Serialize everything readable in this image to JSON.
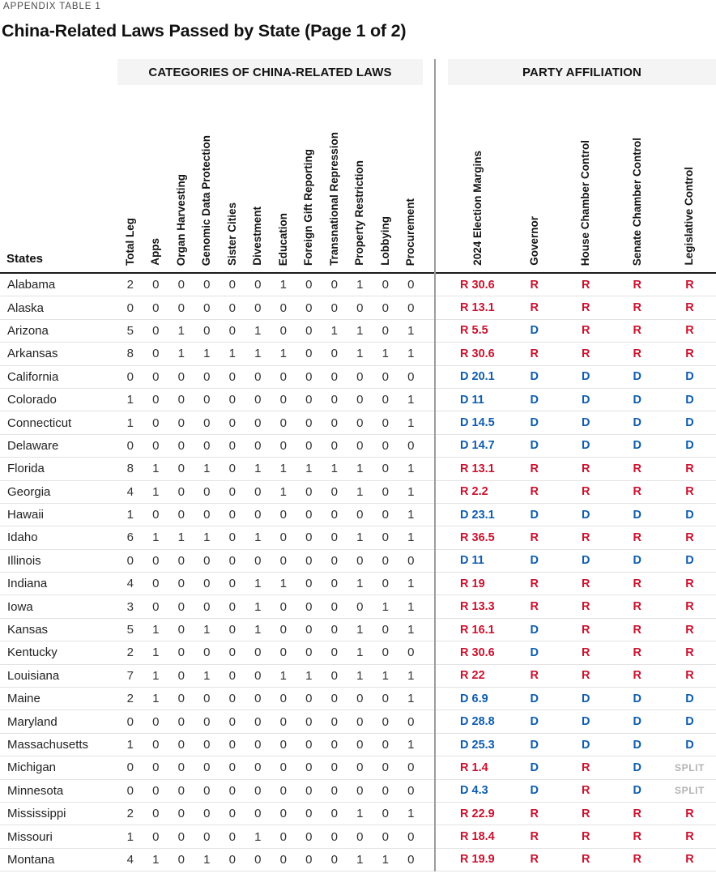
{
  "meta": {
    "appendix_label": "APPENDIX TABLE 1",
    "title": "China-Related Laws Passed by State (Page 1 of 2)"
  },
  "table": {
    "group_headers": {
      "categories": "CATEGORIES OF CHINA-RELATED LAWS",
      "party": "PARTY AFFILIATION"
    },
    "states_column_label": "States",
    "category_columns": [
      "Total Leg",
      "Apps",
      "Organ Harvesting",
      "Genomic Data Protection",
      "Sister Cities",
      "Divestment",
      "Education",
      "Foreign Gift Reporting",
      "Transnational Repression",
      "Property Restriction",
      "Lobbying",
      "Procurement"
    ],
    "party_columns": [
      "2024 Election Margins",
      "Governor",
      "House Chamber Control",
      "Senate Chamber Control",
      "Legislative Control"
    ],
    "colors": {
      "republican": "#c9122f",
      "democrat": "#0e5dad",
      "split": "#b3b3b3"
    },
    "rows": [
      {
        "state": "Alabama",
        "counts": [
          2,
          0,
          0,
          0,
          0,
          0,
          1,
          0,
          0,
          1,
          0,
          0
        ],
        "margin": "R 30.6",
        "governor": "R",
        "house": "R",
        "senate": "R",
        "legislative": "R"
      },
      {
        "state": "Alaska",
        "counts": [
          0,
          0,
          0,
          0,
          0,
          0,
          0,
          0,
          0,
          0,
          0,
          0
        ],
        "margin": "R 13.1",
        "governor": "R",
        "house": "R",
        "senate": "R",
        "legislative": "R"
      },
      {
        "state": "Arizona",
        "counts": [
          5,
          0,
          1,
          0,
          0,
          1,
          0,
          0,
          1,
          1,
          0,
          1
        ],
        "margin": "R 5.5",
        "governor": "D",
        "house": "R",
        "senate": "R",
        "legislative": "R"
      },
      {
        "state": "Arkansas",
        "counts": [
          8,
          0,
          1,
          1,
          1,
          1,
          1,
          0,
          0,
          1,
          1,
          1
        ],
        "margin": "R 30.6",
        "governor": "R",
        "house": "R",
        "senate": "R",
        "legislative": "R"
      },
      {
        "state": "California",
        "counts": [
          0,
          0,
          0,
          0,
          0,
          0,
          0,
          0,
          0,
          0,
          0,
          0
        ],
        "margin": "D 20.1",
        "governor": "D",
        "house": "D",
        "senate": "D",
        "legislative": "D"
      },
      {
        "state": "Colorado",
        "counts": [
          1,
          0,
          0,
          0,
          0,
          0,
          0,
          0,
          0,
          0,
          0,
          1
        ],
        "margin": "D 11",
        "governor": "D",
        "house": "D",
        "senate": "D",
        "legislative": "D"
      },
      {
        "state": "Connecticut",
        "counts": [
          1,
          0,
          0,
          0,
          0,
          0,
          0,
          0,
          0,
          0,
          0,
          1
        ],
        "margin": "D 14.5",
        "governor": "D",
        "house": "D",
        "senate": "D",
        "legislative": "D"
      },
      {
        "state": "Delaware",
        "counts": [
          0,
          0,
          0,
          0,
          0,
          0,
          0,
          0,
          0,
          0,
          0,
          0
        ],
        "margin": "D 14.7",
        "governor": "D",
        "house": "D",
        "senate": "D",
        "legislative": "D"
      },
      {
        "state": "Florida",
        "counts": [
          8,
          1,
          0,
          1,
          0,
          1,
          1,
          1,
          1,
          1,
          0,
          1
        ],
        "margin": "R 13.1",
        "governor": "R",
        "house": "R",
        "senate": "R",
        "legislative": "R"
      },
      {
        "state": "Georgia",
        "counts": [
          4,
          1,
          0,
          0,
          0,
          0,
          1,
          0,
          0,
          1,
          0,
          1
        ],
        "margin": "R 2.2",
        "governor": "R",
        "house": "R",
        "senate": "R",
        "legislative": "R"
      },
      {
        "state": "Hawaii",
        "counts": [
          1,
          0,
          0,
          0,
          0,
          0,
          0,
          0,
          0,
          0,
          0,
          1
        ],
        "margin": "D 23.1",
        "governor": "D",
        "house": "D",
        "senate": "D",
        "legislative": "D"
      },
      {
        "state": "Idaho",
        "counts": [
          6,
          1,
          1,
          1,
          0,
          1,
          0,
          0,
          0,
          1,
          0,
          1
        ],
        "margin": "R 36.5",
        "governor": "R",
        "house": "R",
        "senate": "R",
        "legislative": "R"
      },
      {
        "state": "Illinois",
        "counts": [
          0,
          0,
          0,
          0,
          0,
          0,
          0,
          0,
          0,
          0,
          0,
          0
        ],
        "margin": "D 11",
        "governor": "D",
        "house": "D",
        "senate": "D",
        "legislative": "D"
      },
      {
        "state": "Indiana",
        "counts": [
          4,
          0,
          0,
          0,
          0,
          1,
          1,
          0,
          0,
          1,
          0,
          1
        ],
        "margin": "R 19",
        "governor": "R",
        "house": "R",
        "senate": "R",
        "legislative": "R"
      },
      {
        "state": "Iowa",
        "counts": [
          3,
          0,
          0,
          0,
          0,
          1,
          0,
          0,
          0,
          0,
          1,
          1
        ],
        "margin": "R 13.3",
        "governor": "R",
        "house": "R",
        "senate": "R",
        "legislative": "R"
      },
      {
        "state": "Kansas",
        "counts": [
          5,
          1,
          0,
          1,
          0,
          1,
          0,
          0,
          0,
          1,
          0,
          1
        ],
        "margin": "R 16.1",
        "governor": "D",
        "house": "R",
        "senate": "R",
        "legislative": "R"
      },
      {
        "state": "Kentucky",
        "counts": [
          2,
          1,
          0,
          0,
          0,
          0,
          0,
          0,
          0,
          1,
          0,
          0
        ],
        "margin": "R 30.6",
        "governor": "D",
        "house": "R",
        "senate": "R",
        "legislative": "R"
      },
      {
        "state": "Louisiana",
        "counts": [
          7,
          1,
          0,
          1,
          0,
          0,
          1,
          1,
          0,
          1,
          1,
          1
        ],
        "margin": "R 22",
        "governor": "R",
        "house": "R",
        "senate": "R",
        "legislative": "R"
      },
      {
        "state": "Maine",
        "counts": [
          2,
          1,
          0,
          0,
          0,
          0,
          0,
          0,
          0,
          0,
          0,
          1
        ],
        "margin": "D 6.9",
        "governor": "D",
        "house": "D",
        "senate": "D",
        "legislative": "D"
      },
      {
        "state": "Maryland",
        "counts": [
          0,
          0,
          0,
          0,
          0,
          0,
          0,
          0,
          0,
          0,
          0,
          0
        ],
        "margin": "D 28.8",
        "governor": "D",
        "house": "D",
        "senate": "D",
        "legislative": "D"
      },
      {
        "state": "Massachusetts",
        "counts": [
          1,
          0,
          0,
          0,
          0,
          0,
          0,
          0,
          0,
          0,
          0,
          1
        ],
        "margin": "D 25.3",
        "governor": "D",
        "house": "D",
        "senate": "D",
        "legislative": "D"
      },
      {
        "state": "Michigan",
        "counts": [
          0,
          0,
          0,
          0,
          0,
          0,
          0,
          0,
          0,
          0,
          0,
          0
        ],
        "margin": "R 1.4",
        "governor": "D",
        "house": "R",
        "senate": "D",
        "legislative": "SPLIT"
      },
      {
        "state": "Minnesota",
        "counts": [
          0,
          0,
          0,
          0,
          0,
          0,
          0,
          0,
          0,
          0,
          0,
          0
        ],
        "margin": "D 4.3",
        "governor": "D",
        "house": "R",
        "senate": "D",
        "legislative": "SPLIT"
      },
      {
        "state": "Mississippi",
        "counts": [
          2,
          0,
          0,
          0,
          0,
          0,
          0,
          0,
          0,
          1,
          0,
          1
        ],
        "margin": "R 22.9",
        "governor": "R",
        "house": "R",
        "senate": "R",
        "legislative": "R"
      },
      {
        "state": "Missouri",
        "counts": [
          1,
          0,
          0,
          0,
          0,
          1,
          0,
          0,
          0,
          0,
          0,
          0
        ],
        "margin": "R 18.4",
        "governor": "R",
        "house": "R",
        "senate": "R",
        "legislative": "R"
      },
      {
        "state": "Montana",
        "counts": [
          4,
          1,
          0,
          1,
          0,
          0,
          0,
          0,
          0,
          1,
          1,
          0
        ],
        "margin": "R 19.9",
        "governor": "R",
        "house": "R",
        "senate": "R",
        "legislative": "R"
      }
    ]
  }
}
